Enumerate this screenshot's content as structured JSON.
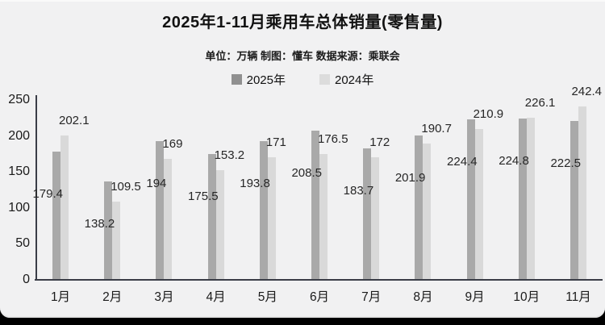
{
  "title": "2025年1-11月乘用车总体销量(零售量)",
  "subtitle": "单位：万辆 制图：懂车 数据来源：乘联会",
  "legend": [
    {
      "label": "2025年",
      "color": "#909090"
    },
    {
      "label": "2024年",
      "color": "#dcdcdc"
    }
  ],
  "colors": {
    "card_background": "#f1f1f2",
    "page_background": "#000000",
    "axis": "#3a3d47",
    "bar_2025": "#a9a9a9",
    "bar_2024": "#d9d9d9",
    "text": "#1a1a1a"
  },
  "chart_data": {
    "type": "bar",
    "title": "2025年1-11月乘用车总体销量(零售量)",
    "subtitle": "单位：万辆 制图：懂车 数据来源：乘联会",
    "categories": [
      "1月",
      "2月",
      "3月",
      "4月",
      "5月",
      "6月",
      "7月",
      "8月",
      "9月",
      "10月",
      "11月"
    ],
    "series": [
      {
        "name": "2025年",
        "color": "#a9a9a9",
        "values": [
          179.4,
          138.2,
          194,
          175.5,
          193.8,
          208.5,
          183.7,
          201.9,
          224.4,
          224.8,
          222.5
        ],
        "labels": [
          "179.4",
          "138.2",
          "194",
          "175.5",
          "193.8",
          "208.5",
          "183.7",
          "201.9",
          "224.4",
          "224.8",
          "222.5"
        ]
      },
      {
        "name": "2024年",
        "color": "#d9d9d9",
        "values": [
          202.1,
          109.5,
          169,
          153.2,
          171,
          176.5,
          172,
          190.7,
          210.9,
          226.1,
          242.4
        ],
        "labels": [
          "202.1",
          "109.5",
          "169",
          "153.2",
          "171",
          "176.5",
          "172",
          "190.7",
          "210.9",
          "226.1",
          "242.4"
        ]
      }
    ],
    "xlabel": "",
    "ylabel": "",
    "ylim": [
      0,
      250
    ],
    "yticks": [
      0,
      50,
      100,
      150,
      200,
      250
    ],
    "grid": false,
    "legend_position": "top"
  }
}
